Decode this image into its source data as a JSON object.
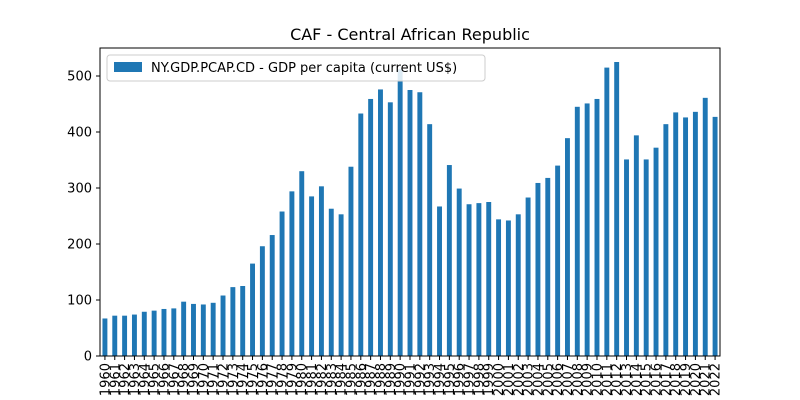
{
  "chart_data": {
    "type": "bar",
    "title": "CAF - Central African Republic",
    "xlabel": "",
    "ylabel": "",
    "ylim": [
      0,
      550
    ],
    "yticks": [
      0,
      100,
      200,
      300,
      400,
      500
    ],
    "legend": "top-left",
    "grid": false,
    "bar_color": "#1f77b4",
    "categories": [
      "1960",
      "1961",
      "1962",
      "1963",
      "1964",
      "1965",
      "1966",
      "1967",
      "1968",
      "1969",
      "1970",
      "1971",
      "1972",
      "1973",
      "1974",
      "1975",
      "1976",
      "1977",
      "1978",
      "1979",
      "1980",
      "1981",
      "1982",
      "1983",
      "1984",
      "1985",
      "1986",
      "1987",
      "1988",
      "1989",
      "1990",
      "1991",
      "1992",
      "1993",
      "1994",
      "1995",
      "1996",
      "1997",
      "1998",
      "1999",
      "2000",
      "2001",
      "2002",
      "2003",
      "2004",
      "2005",
      "2006",
      "2007",
      "2008",
      "2009",
      "2010",
      "2011",
      "2012",
      "2013",
      "2014",
      "2015",
      "2016",
      "2017",
      "2018",
      "2019",
      "2020",
      "2021",
      "2022"
    ],
    "series": [
      {
        "name": "NY.GDP.PCAP.CD - GDP per capita (current US$)",
        "values": [
          67,
          72,
          72,
          74,
          79,
          81,
          84,
          85,
          97,
          93,
          92,
          95,
          108,
          123,
          125,
          165,
          196,
          216,
          258,
          294,
          330,
          285,
          303,
          263,
          253,
          338,
          433,
          459,
          476,
          453,
          512,
          475,
          471,
          414,
          267,
          341,
          299,
          271,
          273,
          275,
          244,
          242,
          253,
          283,
          309,
          318,
          340,
          389,
          445,
          451,
          459,
          515,
          525,
          351,
          394,
          351,
          372,
          414,
          435,
          426,
          436,
          461,
          427
        ]
      }
    ]
  }
}
